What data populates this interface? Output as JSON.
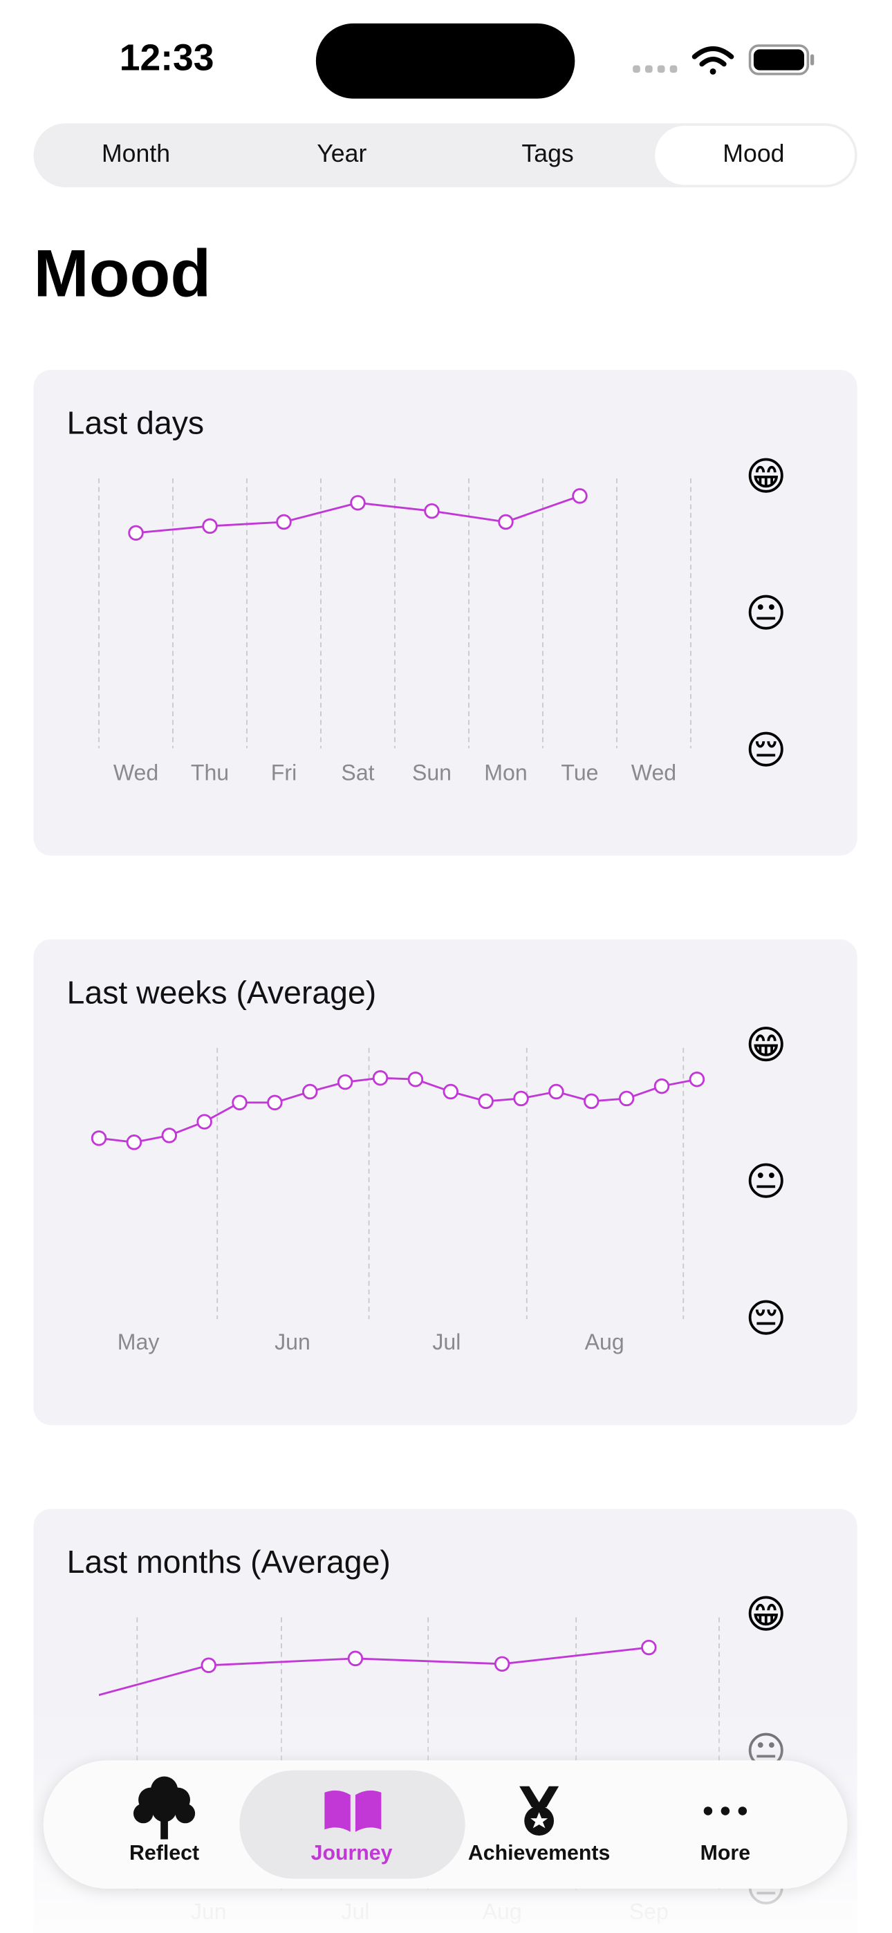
{
  "status_bar": {
    "time": "12:33"
  },
  "tabs": [
    "Month",
    "Year",
    "Tags",
    "Mood"
  ],
  "title": "Mood",
  "chart_data": [
    {
      "type": "line",
      "title": "Last days",
      "categories": [
        "Wed",
        "Thu",
        "Fri",
        "Sat",
        "Sun",
        "Mon",
        "Tue",
        "Wed"
      ],
      "series": [
        {
          "name": "Mood",
          "color": "#c238d6",
          "values": [
            2.61,
            2.66,
            2.69,
            2.83,
            2.77,
            2.69,
            2.88,
            null
          ]
        }
      ],
      "ylim": [
        1,
        3
      ],
      "yticks": [
        {
          "value": 1,
          "label": "😔"
        },
        {
          "value": 2,
          "label": "😐"
        },
        {
          "value": 3,
          "label": "😁"
        }
      ]
    },
    {
      "type": "line",
      "title": "Last weeks (Average)",
      "x_labels": [
        "May",
        "Jun",
        "Jul",
        "Aug"
      ],
      "series": [
        {
          "name": "Mood",
          "color": "#c238d6",
          "values": [
            2.34,
            2.31,
            2.36,
            2.46,
            2.6,
            2.6,
            2.68,
            2.75,
            2.78,
            2.77,
            2.68,
            2.61,
            2.63,
            2.68,
            2.61,
            2.63,
            2.72,
            2.77
          ]
        }
      ],
      "ylim": [
        1,
        3
      ],
      "yticks": [
        {
          "value": 1,
          "label": "😔"
        },
        {
          "value": 2,
          "label": "😐"
        },
        {
          "value": 3,
          "label": "😁"
        }
      ]
    },
    {
      "type": "line",
      "title": "Last months (Average)",
      "categories": [
        null,
        "Jun",
        "Jul",
        "Aug",
        "Sep"
      ],
      "series": [
        {
          "name": "Mood",
          "color": "#c238d6",
          "values": [
            2.36,
            2.65,
            2.7,
            2.66,
            2.78
          ]
        }
      ],
      "ylim": [
        1,
        3
      ],
      "yticks": [
        {
          "value": 1,
          "label": "😔"
        },
        {
          "value": 2,
          "label": "😐"
        },
        {
          "value": 3,
          "label": "😁"
        }
      ]
    }
  ],
  "tab_bar": [
    "Reflect",
    "Journey",
    "Achievements",
    "More"
  ]
}
